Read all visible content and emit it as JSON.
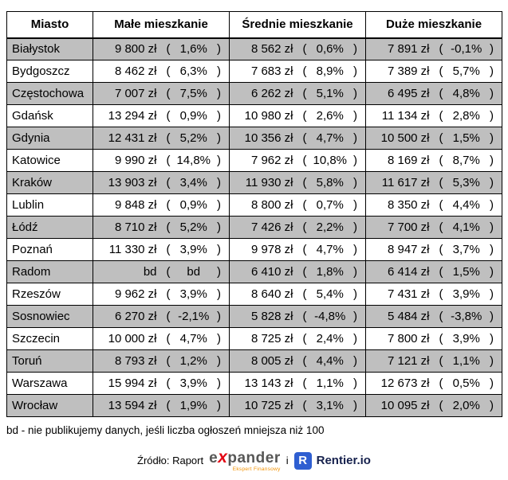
{
  "colors": {
    "row-gray": "#bfbfbf",
    "expander-red": "#e30613",
    "expander-gray": "#575756",
    "expander-orange": "#f39200",
    "rentier-blue": "#2e5ed1",
    "rentier-dark": "#16214d"
  },
  "chart_data": {
    "type": "table",
    "columns": [
      "Miasto",
      "Małe mieszkanie",
      "Średnie mieszkanie",
      "Duże mieszkanie"
    ],
    "rows": [
      {
        "city": "Białystok",
        "cells": [
          {
            "price": "9 800 zł",
            "pct": "1,6%"
          },
          {
            "price": "8 562 zł",
            "pct": "0,6%"
          },
          {
            "price": "7 891 zł",
            "pct": "-0,1%"
          }
        ]
      },
      {
        "city": "Bydgoszcz",
        "cells": [
          {
            "price": "8 462 zł",
            "pct": "6,3%"
          },
          {
            "price": "7 683 zł",
            "pct": "8,9%"
          },
          {
            "price": "7 389 zł",
            "pct": "5,7%"
          }
        ]
      },
      {
        "city": "Częstochowa",
        "cells": [
          {
            "price": "7 007 zł",
            "pct": "7,5%"
          },
          {
            "price": "6 262 zł",
            "pct": "5,1%"
          },
          {
            "price": "6 495 zł",
            "pct": "4,8%"
          }
        ]
      },
      {
        "city": "Gdańsk",
        "cells": [
          {
            "price": "13 294 zł",
            "pct": "0,9%"
          },
          {
            "price": "10 980 zł",
            "pct": "2,6%"
          },
          {
            "price": "11 134 zł",
            "pct": "2,8%"
          }
        ]
      },
      {
        "city": "Gdynia",
        "cells": [
          {
            "price": "12 431 zł",
            "pct": "5,2%"
          },
          {
            "price": "10 356 zł",
            "pct": "4,7%"
          },
          {
            "price": "10 500 zł",
            "pct": "1,5%"
          }
        ]
      },
      {
        "city": "Katowice",
        "cells": [
          {
            "price": "9 990 zł",
            "pct": "14,8%"
          },
          {
            "price": "7 962 zł",
            "pct": "10,8%"
          },
          {
            "price": "8 169 zł",
            "pct": "8,7%"
          }
        ]
      },
      {
        "city": "Kraków",
        "cells": [
          {
            "price": "13 903 zł",
            "pct": "3,4%"
          },
          {
            "price": "11 930 zł",
            "pct": "5,8%"
          },
          {
            "price": "11 617 zł",
            "pct": "5,3%"
          }
        ]
      },
      {
        "city": "Lublin",
        "cells": [
          {
            "price": "9 848 zł",
            "pct": "0,9%"
          },
          {
            "price": "8 800 zł",
            "pct": "0,7%"
          },
          {
            "price": "8 350 zł",
            "pct": "4,4%"
          }
        ]
      },
      {
        "city": "Łódź",
        "cells": [
          {
            "price": "8 710 zł",
            "pct": "5,2%"
          },
          {
            "price": "7 426 zł",
            "pct": "2,2%"
          },
          {
            "price": "7 700 zł",
            "pct": "4,1%"
          }
        ]
      },
      {
        "city": "Poznań",
        "cells": [
          {
            "price": "11 330 zł",
            "pct": "3,9%"
          },
          {
            "price": "9 978 zł",
            "pct": "4,7%"
          },
          {
            "price": "8 947 zł",
            "pct": "3,7%"
          }
        ]
      },
      {
        "city": "Radom",
        "cells": [
          {
            "price": "bd",
            "pct": "bd"
          },
          {
            "price": "6 410 zł",
            "pct": "1,8%"
          },
          {
            "price": "6 414 zł",
            "pct": "1,5%"
          }
        ]
      },
      {
        "city": "Rzeszów",
        "cells": [
          {
            "price": "9 962 zł",
            "pct": "3,9%"
          },
          {
            "price": "8 640 zł",
            "pct": "5,4%"
          },
          {
            "price": "7 431 zł",
            "pct": "3,9%"
          }
        ]
      },
      {
        "city": "Sosnowiec",
        "cells": [
          {
            "price": "6 270 zł",
            "pct": "-2,1%"
          },
          {
            "price": "5 828 zł",
            "pct": "-4,8%"
          },
          {
            "price": "5 484 zł",
            "pct": "-3,8%"
          }
        ]
      },
      {
        "city": "Szczecin",
        "cells": [
          {
            "price": "10 000 zł",
            "pct": "4,7%"
          },
          {
            "price": "8 725 zł",
            "pct": "2,4%"
          },
          {
            "price": "7 800 zł",
            "pct": "3,9%"
          }
        ]
      },
      {
        "city": "Toruń",
        "cells": [
          {
            "price": "8 793 zł",
            "pct": "1,2%"
          },
          {
            "price": "8 005 zł",
            "pct": "4,4%"
          },
          {
            "price": "7 121 zł",
            "pct": "1,1%"
          }
        ]
      },
      {
        "city": "Warszawa",
        "cells": [
          {
            "price": "15 994 zł",
            "pct": "3,9%"
          },
          {
            "price": "13 143 zł",
            "pct": "1,1%"
          },
          {
            "price": "12 673 zł",
            "pct": "0,5%"
          }
        ]
      },
      {
        "city": "Wrocław",
        "cells": [
          {
            "price": "13 594 zł",
            "pct": "1,9%"
          },
          {
            "price": "10 725 zł",
            "pct": "3,1%"
          },
          {
            "price": "10 095 zł",
            "pct": "2,0%"
          }
        ]
      }
    ]
  },
  "footnote": "bd - nie publikujemy danych, jeśli liczba ogłoszeń mniejsza niż 100",
  "source": {
    "prefix": "Źródło: Raport",
    "connector": "i",
    "expander": {
      "pre": "e",
      "x": "x",
      "post": "pander",
      "tagline": "Ekspert Finansowy"
    },
    "rentier": {
      "icon_letter": "R",
      "label": "Rentier.io"
    }
  }
}
